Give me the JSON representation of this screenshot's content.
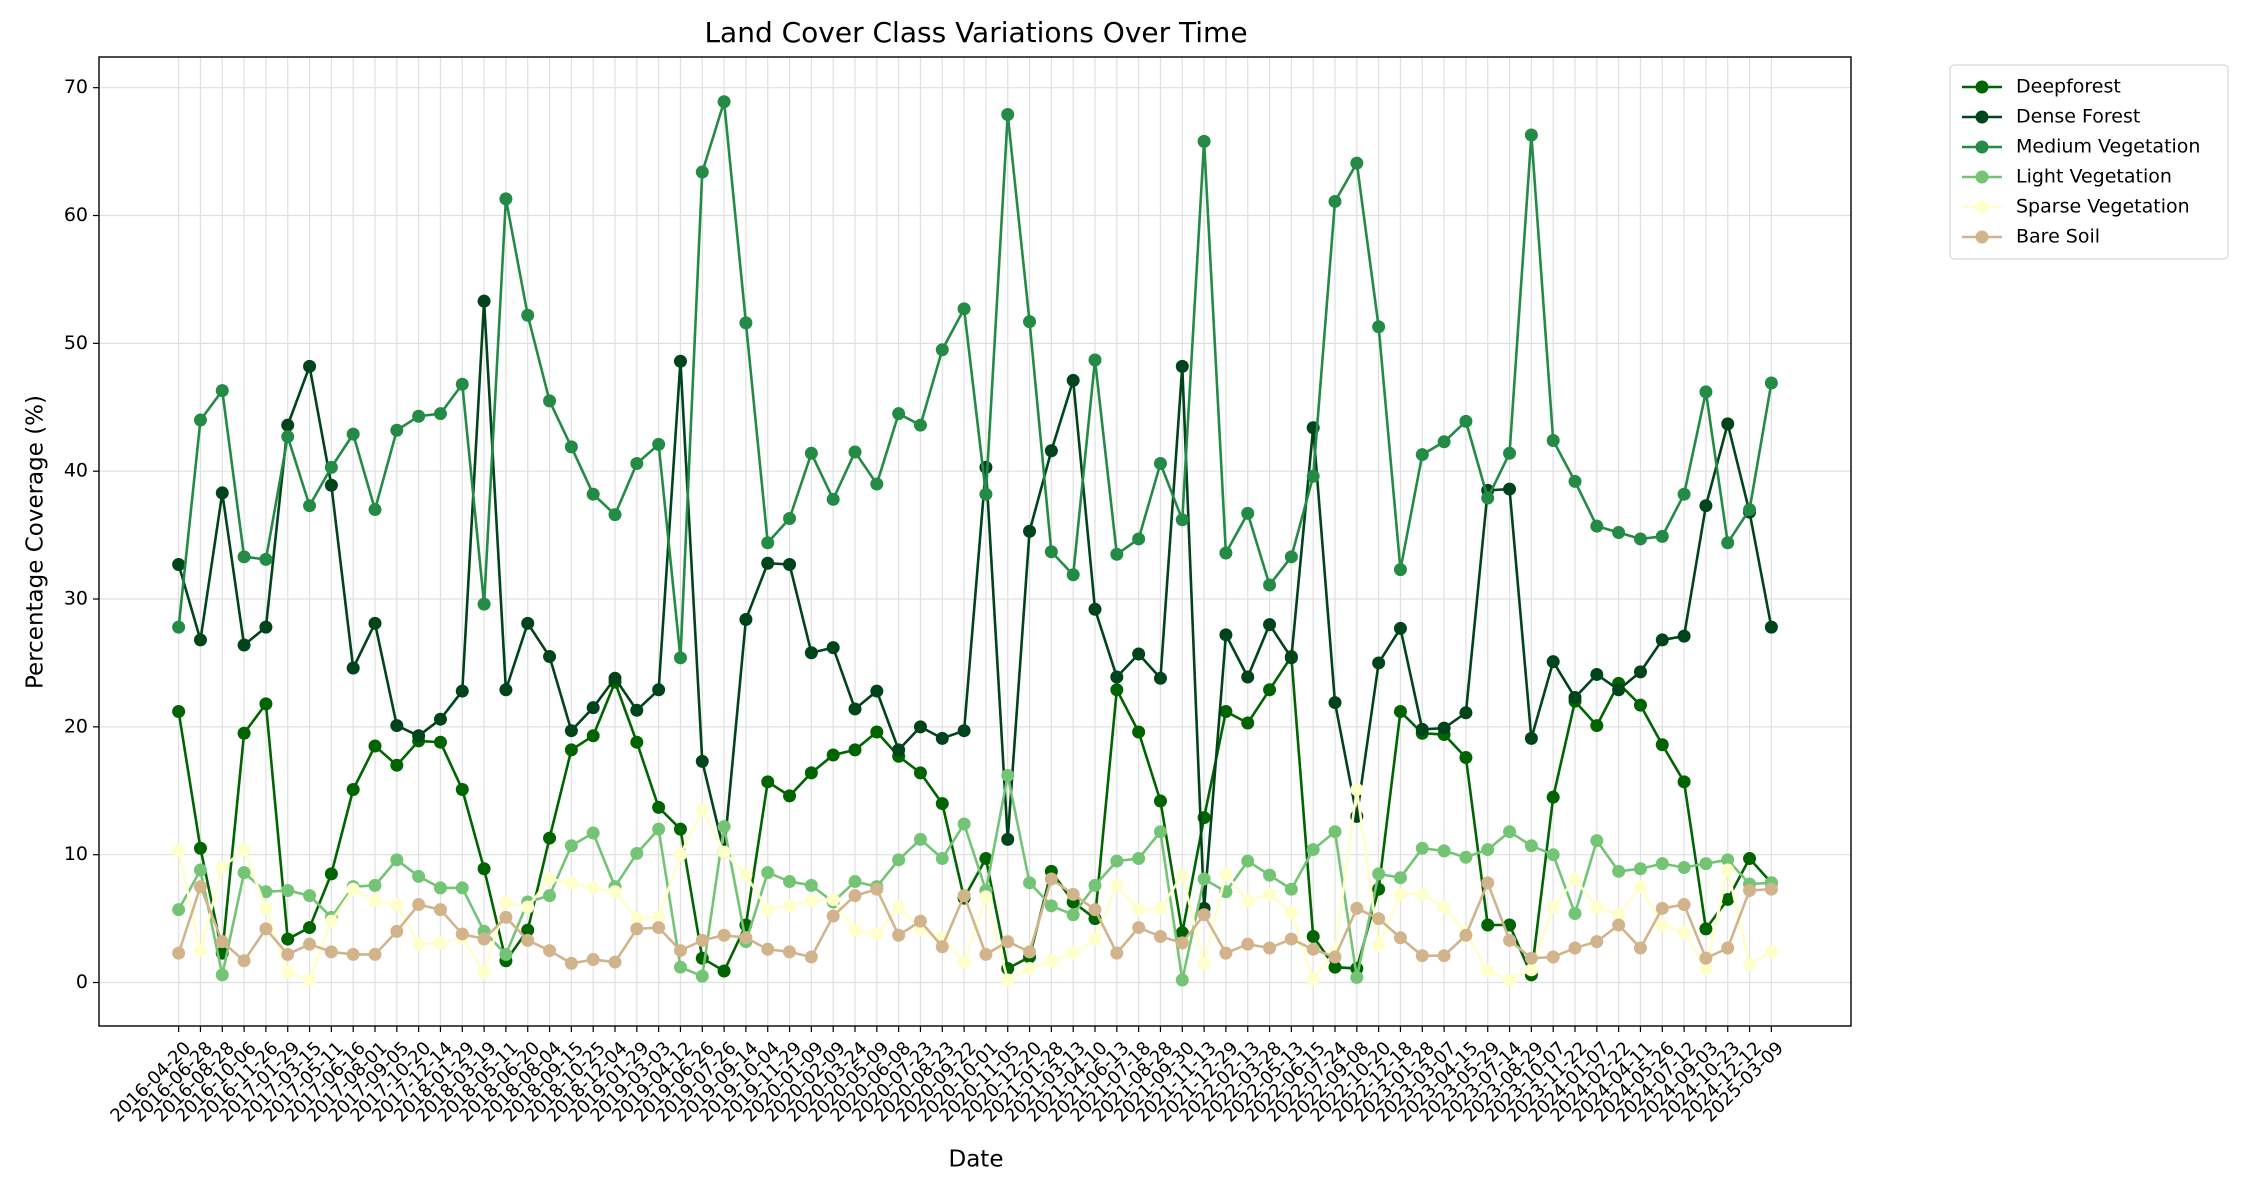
{
  "chart_data": {
    "type": "line",
    "title": "Land Cover Class Variations Over Time",
    "x_label": "Date",
    "y_label": "Percentage Coverage (%)",
    "categories": [
      "2016-04-20",
      "2016-06-28",
      "2016-08-28",
      "2016-10-06",
      "2016-11-26",
      "2017-01-29",
      "2017-03-15",
      "2017-05-11",
      "2017-06-16",
      "2017-08-01",
      "2017-09-05",
      "2017-10-20",
      "2017-12-14",
      "2018-01-29",
      "2018-03-19",
      "2018-05-11",
      "2018-06-20",
      "2018-08-04",
      "2018-09-15",
      "2018-10-25",
      "2018-12-04",
      "2019-01-29",
      "2019-03-03",
      "2019-04-12",
      "2019-06-26",
      "2019-07-26",
      "2019-09-14",
      "2019-10-04",
      "2019-11-29",
      "2020-01-09",
      "2020-02-09",
      "2020-03-24",
      "2020-05-09",
      "2020-06-08",
      "2020-07-23",
      "2020-08-23",
      "2020-09-22",
      "2020-10-01",
      "2020-11-05",
      "2020-12-20",
      "2021-01-28",
      "2021-03-13",
      "2021-04-10",
      "2021-06-13",
      "2021-07-18",
      "2021-08-28",
      "2021-09-30",
      "2021-11-13",
      "2021-12-29",
      "2022-02-13",
      "2022-03-28",
      "2022-05-13",
      "2022-06-15",
      "2022-07-24",
      "2022-09-08",
      "2022-10-20",
      "2022-12-18",
      "2023-01-28",
      "2023-03-07",
      "2023-04-15",
      "2023-05-29",
      "2023-07-14",
      "2023-08-29",
      "2023-10-07",
      "2023-11-22",
      "2024-01-07",
      "2024-02-22",
      "2024-04-11",
      "2024-05-26",
      "2024-07-12",
      "2024-09-03",
      "2024-10-23",
      "2024-12-12",
      "2025-03-09"
    ],
    "series": [
      {
        "name": "Deepforest",
        "color": "#006400",
        "values": [
          21.2,
          10.5,
          2.3,
          19.5,
          21.8,
          3.4,
          4.3,
          8.5,
          15.1,
          18.5,
          17,
          18.9,
          18.8,
          15.1,
          8.9,
          1.7,
          4.1,
          11.3,
          18.2,
          19.3,
          23.5,
          18.8,
          13.7,
          12,
          1.9,
          0.9,
          4.5,
          15.7,
          14.6,
          16.4,
          17.8,
          18.2,
          19.6,
          17.7,
          16.4,
          14,
          6.6,
          9.7,
          1.1,
          2,
          8.7,
          6.3,
          5,
          22.9,
          19.6,
          14.2,
          3.9,
          12.9,
          21.2,
          20.3,
          22.9,
          25.5,
          3.6,
          1.2,
          1.1,
          7.3,
          21.2,
          19.5,
          19.4,
          17.6,
          4.5,
          4.5,
          0.6,
          14.5,
          22,
          20.1,
          23.4,
          21.7,
          18.6,
          15.7,
          4.2,
          6.5,
          9.7,
          7.8
        ]
      },
      {
        "name": "Dense Forest",
        "color": "#00441b",
        "values": [
          32.7,
          26.8,
          38.3,
          26.4,
          27.8,
          43.6,
          48.2,
          38.9,
          24.6,
          28.1,
          20.1,
          19.3,
          20.6,
          22.8,
          53.3,
          22.9,
          28.1,
          25.5,
          19.7,
          21.5,
          23.8,
          21.3,
          22.9,
          48.6,
          17.3,
          10.2,
          28.4,
          32.8,
          32.7,
          25.8,
          26.2,
          21.4,
          22.8,
          18.2,
          20,
          19.1,
          19.7,
          40.3,
          11.2,
          35.3,
          41.6,
          47.1,
          29.2,
          23.9,
          25.7,
          23.8,
          48.2,
          5.8,
          27.2,
          23.9,
          28,
          25.4,
          43.4,
          21.9,
          13,
          25,
          27.7,
          19.8,
          19.9,
          21.1,
          38.5,
          38.6,
          19.1,
          25.1,
          22.3,
          24.1,
          22.9,
          24.3,
          26.8,
          27.1,
          37.3,
          43.7,
          36.8,
          27.8
        ]
      },
      {
        "name": "Medium Vegetation",
        "color": "#238b45",
        "values": [
          27.8,
          44,
          46.3,
          33.3,
          33.1,
          42.7,
          37.3,
          40.3,
          42.9,
          37,
          43.2,
          44.3,
          44.5,
          46.8,
          29.6,
          61.3,
          52.2,
          45.5,
          41.9,
          38.2,
          36.6,
          40.6,
          42.1,
          25.4,
          63.4,
          68.9,
          51.6,
          34.4,
          36.3,
          41.4,
          37.8,
          41.5,
          39,
          44.5,
          43.6,
          49.5,
          52.7,
          38.2,
          67.9,
          51.7,
          33.7,
          31.9,
          48.7,
          33.5,
          34.7,
          40.6,
          36.2,
          65.8,
          33.6,
          36.7,
          31.1,
          33.3,
          39.6,
          61.1,
          64.1,
          51.3,
          32.3,
          41.3,
          42.3,
          43.9,
          37.9,
          41.4,
          66.3,
          42.4,
          39.2,
          35.7,
          35.2,
          34.7,
          34.9,
          38.2,
          46.2,
          34.4,
          37,
          46.9
        ]
      },
      {
        "name": "Light Vegetation",
        "color": "#74c476",
        "values": [
          5.7,
          8.8,
          0.6,
          8.6,
          7.1,
          7.2,
          6.8,
          5.1,
          7.5,
          7.6,
          9.6,
          8.3,
          7.4,
          7.4,
          4,
          2.2,
          6.3,
          6.8,
          10.7,
          11.7,
          7.5,
          10.1,
          12,
          1.2,
          0.5,
          12.2,
          3.2,
          8.6,
          7.9,
          7.6,
          6.3,
          7.9,
          7.5,
          9.6,
          11.2,
          9.7,
          12.4,
          7.2,
          16.2,
          7.8,
          6,
          5.3,
          7.6,
          9.5,
          9.7,
          11.8,
          0.2,
          8.1,
          7.1,
          9.5,
          8.4,
          7.3,
          10.4,
          11.8,
          0.4,
          8.5,
          8.2,
          10.5,
          10.3,
          9.8,
          10.4,
          11.8,
          10.7,
          10,
          5.4,
          11.1,
          8.7,
          8.9,
          9.3,
          9,
          9.3,
          9.6,
          7.7,
          7.8
        ]
      },
      {
        "name": "Sparse Vegetation",
        "color": "#ffffcc",
        "values": [
          10.3,
          2.5,
          9,
          10.4,
          5.8,
          0.8,
          0.2,
          4.8,
          7.3,
          6.4,
          6.1,
          3,
          3.1,
          3.5,
          0.8,
          6.3,
          5.9,
          8.1,
          7.8,
          7.4,
          7.1,
          5,
          5.1,
          10,
          13.5,
          10.2,
          8.4,
          5.7,
          6,
          6.4,
          6.5,
          4.1,
          3.8,
          5.9,
          4.2,
          3.5,
          1.6,
          6.7,
          0.2,
          1.1,
          1.7,
          2.3,
          3.4,
          7.6,
          5.7,
          5.8,
          8.4,
          1.5,
          8.5,
          6.4,
          6.9,
          5.5,
          0.3,
          2.4,
          15.1,
          2.9,
          6.9,
          6.9,
          5.9,
          3.9,
          0.9,
          0.2,
          1,
          5.9,
          8.1,
          5.9,
          5.3,
          7.5,
          4.5,
          3.9,
          1.1,
          8.8,
          1.4,
          2.4
        ]
      },
      {
        "name": "Bare Soil",
        "color": "#d2b48c",
        "values": [
          2.3,
          7.5,
          3.2,
          1.7,
          4.2,
          2.2,
          3,
          2.4,
          2.2,
          2.2,
          4,
          6.1,
          5.7,
          3.8,
          3.4,
          5.1,
          3.3,
          2.5,
          1.5,
          1.8,
          1.6,
          4.2,
          4.3,
          2.5,
          3.3,
          3.7,
          3.5,
          2.6,
          2.4,
          2,
          5.2,
          6.8,
          7.3,
          3.7,
          4.8,
          2.8,
          6.8,
          2.2,
          3.2,
          2.4,
          8.1,
          6.9,
          5.7,
          2.3,
          4.3,
          3.6,
          3.1,
          5.3,
          2.3,
          3,
          2.7,
          3.4,
          2.6,
          2,
          5.8,
          5,
          3.5,
          2.1,
          2.1,
          3.7,
          7.8,
          3.3,
          1.9,
          2,
          2.7,
          3.2,
          4.5,
          2.7,
          5.8,
          6.1,
          1.9,
          2.7,
          7.2,
          7.3
        ]
      }
    ],
    "ylim": [
      -3.4,
      72.4
    ],
    "yticks": [
      0,
      10,
      20,
      30,
      40,
      50,
      60,
      70
    ],
    "grid": true,
    "legend": "outside upper right"
  }
}
